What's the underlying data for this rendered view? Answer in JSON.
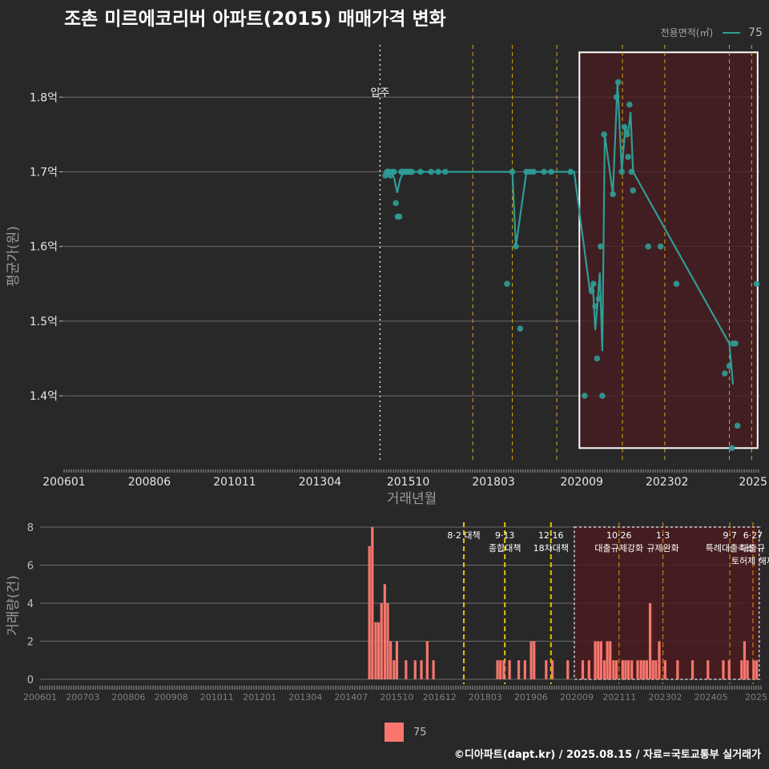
{
  "title": "조촌 미르에코리버 아파트(2015) 매매가격 변화",
  "credit": "©디아파트(dapt.kr) / 2025.08.15 / 자료=국토교통부 실거래가",
  "legend_top": {
    "title": "전용면적(㎡)",
    "item": "75"
  },
  "legend_bottom": {
    "item": "75"
  },
  "colors": {
    "background": "#282829",
    "line": "#2f9c96",
    "bar": "#f8766d",
    "policy_line": "#f2c200",
    "event_line": "#ffd000",
    "highlight_fill": "#4a1b1f"
  },
  "chart_data": [
    {
      "type": "line",
      "name": "price-chart",
      "xlabel": "거래년월",
      "ylabel": "평균가(원)",
      "x_ticks": [
        "200601",
        "200806",
        "201011",
        "201304",
        "201510",
        "201803",
        "202009",
        "202302",
        "2025"
      ],
      "y_ticks": [
        "1.4억",
        "1.5억",
        "1.6억",
        "1.7억",
        "1.8억"
      ],
      "y_tick_values": [
        1.4,
        1.5,
        1.6,
        1.7,
        1.8
      ],
      "ylim": [
        1.31,
        1.87
      ],
      "x_unit": "year (decimal)",
      "xlim": [
        2006.0,
        2025.7
      ],
      "grid": true,
      "annotation": {
        "label": "입주",
        "x": 2014.95
      },
      "policy_lines": [
        2017.58,
        2018.7,
        2019.96,
        2021.82,
        2023.02,
        2024.85,
        2025.48
      ],
      "event_lines": [
        2021.82,
        2025.48
      ],
      "highlight": {
        "x_start": 2020.6,
        "x_end": 2025.65,
        "y_start": 1.33,
        "y_end": 1.86
      },
      "series": [
        {
          "name": "75",
          "line_points": [
            [
              2015.12,
              1.693
            ],
            [
              2015.2,
              1.697
            ],
            [
              2015.28,
              1.7
            ],
            [
              2015.36,
              1.69
            ],
            [
              2015.44,
              1.672
            ],
            [
              2015.52,
              1.69
            ],
            [
              2015.62,
              1.7
            ],
            [
              2015.72,
              1.7
            ],
            [
              2015.85,
              1.7
            ],
            [
              2018.7,
              1.7
            ],
            [
              2018.8,
              1.6
            ],
            [
              2019.1,
              1.7
            ],
            [
              2019.3,
              1.7
            ],
            [
              2020.45,
              1.7
            ],
            [
              2020.9,
              1.54
            ],
            [
              2020.98,
              1.55
            ],
            [
              2021.05,
              1.488
            ],
            [
              2021.1,
              1.515
            ],
            [
              2021.18,
              1.565
            ],
            [
              2021.25,
              1.46
            ],
            [
              2021.32,
              1.75
            ],
            [
              2021.55,
              1.67
            ],
            [
              2021.68,
              1.82
            ],
            [
              2021.8,
              1.7
            ],
            [
              2021.9,
              1.76
            ],
            [
              2021.98,
              1.75
            ],
            [
              2022.05,
              1.78
            ],
            [
              2022.12,
              1.7
            ],
            [
              2024.85,
              1.47
            ],
            [
              2024.95,
              1.415
            ]
          ],
          "points": [
            [
              2015.1,
              1.695
            ],
            [
              2015.15,
              1.7
            ],
            [
              2015.2,
              1.7
            ],
            [
              2015.25,
              1.695
            ],
            [
              2015.3,
              1.7
            ],
            [
              2015.35,
              1.7
            ],
            [
              2015.4,
              1.658
            ],
            [
              2015.45,
              1.64
            ],
            [
              2015.5,
              1.64
            ],
            [
              2015.55,
              1.7
            ],
            [
              2015.6,
              1.7
            ],
            [
              2015.65,
              1.7
            ],
            [
              2015.7,
              1.7
            ],
            [
              2015.75,
              1.7
            ],
            [
              2015.8,
              1.7
            ],
            [
              2015.85,
              1.7
            ],
            [
              2016.1,
              1.7
            ],
            [
              2016.4,
              1.7
            ],
            [
              2016.6,
              1.7
            ],
            [
              2016.8,
              1.7
            ],
            [
              2018.55,
              1.55
            ],
            [
              2018.7,
              1.7
            ],
            [
              2018.8,
              1.6
            ],
            [
              2018.92,
              1.49
            ],
            [
              2019.1,
              1.7
            ],
            [
              2019.2,
              1.7
            ],
            [
              2019.3,
              1.7
            ],
            [
              2019.6,
              1.7
            ],
            [
              2019.8,
              1.7
            ],
            [
              2020.35,
              1.7
            ],
            [
              2020.75,
              1.4
            ],
            [
              2020.95,
              1.54
            ],
            [
              2021.0,
              1.55
            ],
            [
              2021.05,
              1.52
            ],
            [
              2021.1,
              1.45
            ],
            [
              2021.15,
              1.53
            ],
            [
              2021.2,
              1.6
            ],
            [
              2021.25,
              1.4
            ],
            [
              2021.3,
              1.75
            ],
            [
              2021.55,
              1.67
            ],
            [
              2021.65,
              1.8
            ],
            [
              2021.7,
              1.82
            ],
            [
              2021.8,
              1.7
            ],
            [
              2021.88,
              1.76
            ],
            [
              2021.95,
              1.75
            ],
            [
              2021.98,
              1.72
            ],
            [
              2022.02,
              1.79
            ],
            [
              2022.08,
              1.7
            ],
            [
              2022.12,
              1.675
            ],
            [
              2022.55,
              1.6
            ],
            [
              2022.9,
              1.6
            ],
            [
              2023.35,
              1.55
            ],
            [
              2024.72,
              1.43
            ],
            [
              2024.85,
              1.44
            ],
            [
              2024.92,
              1.33
            ],
            [
              2024.95,
              1.47
            ],
            [
              2025.02,
              1.47
            ],
            [
              2025.08,
              1.36
            ],
            [
              2025.62,
              1.55
            ]
          ]
        }
      ]
    },
    {
      "type": "bar",
      "name": "volume-chart",
      "ylabel": "거래량(건)",
      "y_ticks": [
        "0",
        "2",
        "4",
        "6",
        "8"
      ],
      "ylim": [
        0,
        8
      ],
      "x_ticks": [
        "200601",
        "200703",
        "200806",
        "200908",
        "201011",
        "201201",
        "201304",
        "201407",
        "201510",
        "201612",
        "201803",
        "201906",
        "202009",
        "202111",
        "202302",
        "202405",
        "2025"
      ],
      "x_unit": "year (decimal)",
      "xlim": [
        2006.0,
        2025.7
      ],
      "grid": true,
      "policy_lines": [
        2017.58,
        2018.7,
        2019.96
      ],
      "policy_labels": [
        {
          "x": 2017.58,
          "lines": [
            "8·2 대책"
          ]
        },
        {
          "x": 2018.7,
          "lines": [
            "9·13",
            "종합대책"
          ]
        },
        {
          "x": 2019.96,
          "lines": [
            "12·16",
            "18차대책"
          ]
        },
        {
          "x": 2021.82,
          "lines": [
            "10·26",
            "대출규제강화"
          ]
        },
        {
          "x": 2023.02,
          "lines": [
            "1·3",
            "규제완화"
          ]
        },
        {
          "x": 2024.85,
          "lines": [
            "9·7",
            "특례대출축소"
          ]
        },
        {
          "x": 2025.48,
          "lines": [
            "6·27",
            "대출규",
            "토허제 해제"
          ]
        }
      ],
      "highlight_dotted": {
        "x_start": 2020.6,
        "x_end": 2025.65
      },
      "bars": [
        [
          2015.0,
          7
        ],
        [
          2015.08,
          8
        ],
        [
          2015.17,
          3
        ],
        [
          2015.25,
          3
        ],
        [
          2015.33,
          4
        ],
        [
          2015.42,
          5
        ],
        [
          2015.5,
          4
        ],
        [
          2015.58,
          2
        ],
        [
          2015.67,
          1
        ],
        [
          2015.75,
          2
        ],
        [
          2016.0,
          1
        ],
        [
          2016.25,
          1
        ],
        [
          2016.42,
          1
        ],
        [
          2016.58,
          2
        ],
        [
          2016.75,
          1
        ],
        [
          2018.5,
          1
        ],
        [
          2018.58,
          1
        ],
        [
          2018.67,
          1
        ],
        [
          2018.83,
          1
        ],
        [
          2019.08,
          1
        ],
        [
          2019.25,
          1
        ],
        [
          2019.42,
          2
        ],
        [
          2019.5,
          2
        ],
        [
          2019.83,
          1
        ],
        [
          2020.0,
          1
        ],
        [
          2020.42,
          1
        ],
        [
          2020.83,
          1
        ],
        [
          2021.0,
          1
        ],
        [
          2021.17,
          2
        ],
        [
          2021.25,
          2
        ],
        [
          2021.33,
          2
        ],
        [
          2021.42,
          1
        ],
        [
          2021.5,
          2
        ],
        [
          2021.58,
          2
        ],
        [
          2021.67,
          1
        ],
        [
          2021.75,
          1
        ],
        [
          2021.92,
          1
        ],
        [
          2022.0,
          1
        ],
        [
          2022.08,
          1
        ],
        [
          2022.17,
          1
        ],
        [
          2022.33,
          1
        ],
        [
          2022.42,
          1
        ],
        [
          2022.5,
          1
        ],
        [
          2022.58,
          1
        ],
        [
          2022.67,
          4
        ],
        [
          2022.75,
          1
        ],
        [
          2022.83,
          1
        ],
        [
          2022.92,
          2
        ],
        [
          2023.08,
          1
        ],
        [
          2023.42,
          1
        ],
        [
          2023.83,
          1
        ],
        [
          2024.25,
          1
        ],
        [
          2024.67,
          1
        ],
        [
          2024.83,
          1
        ],
        [
          2025.17,
          1
        ],
        [
          2025.25,
          2
        ],
        [
          2025.33,
          1
        ],
        [
          2025.5,
          1
        ],
        [
          2025.58,
          1
        ]
      ]
    }
  ]
}
